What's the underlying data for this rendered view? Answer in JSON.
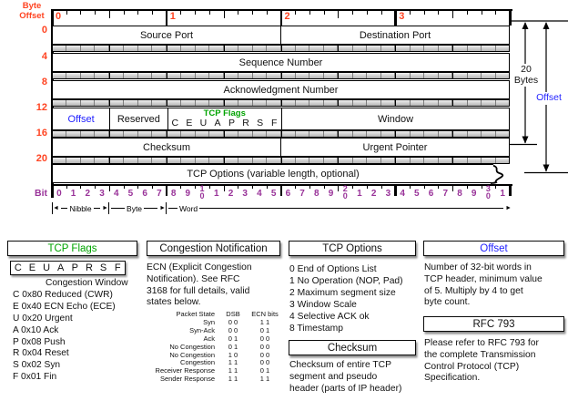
{
  "colors": {
    "red": "#ff4422",
    "purple": "#993399",
    "green": "#00a300",
    "blue": "#1f1fff"
  },
  "labels": {
    "byte_offset": "Byte\nOffset",
    "bit": "Bit",
    "nibble": "Nibble",
    "byte": "Byte",
    "word": "Word",
    "twenty_bytes": "20\nBytes",
    "offset_arrow": "Offset"
  },
  "top_ruler_numbers": [
    "0",
    "1",
    "2",
    "3"
  ],
  "row_offsets": [
    "0",
    "4",
    "8",
    "12",
    "16",
    "20"
  ],
  "bit_numbers": [
    "0",
    "1",
    "2",
    "3",
    "4",
    "5",
    "6",
    "7",
    "8",
    "9",
    "1\n0",
    "1",
    "2",
    "3",
    "4",
    "5",
    "6",
    "7",
    "8",
    "9",
    "2\n0",
    "1",
    "2",
    "3",
    "4",
    "5",
    "6",
    "7",
    "8",
    "9",
    "3\n0",
    "1"
  ],
  "rows": [
    {
      "fields": [
        {
          "label": "Source Port",
          "bits": 16
        },
        {
          "label": "Destination Port",
          "bits": 16
        }
      ]
    },
    {
      "fields": [
        {
          "label": "Sequence Number",
          "bits": 32
        }
      ]
    },
    {
      "fields": [
        {
          "label": "Acknowledgment Number",
          "bits": 32
        }
      ]
    },
    {
      "fields": [
        {
          "label": "Offset",
          "bits": 4,
          "color": "blue"
        },
        {
          "label": "Reserved",
          "bits": 4
        },
        {
          "label": "TCP Flags",
          "sub": "C E U A P R S F",
          "bits": 8
        },
        {
          "label": "Window",
          "bits": 16
        }
      ]
    },
    {
      "fields": [
        {
          "label": "Checksum",
          "bits": 16
        },
        {
          "label": "Urgent Pointer",
          "bits": 16
        }
      ]
    },
    {
      "fields": [
        {
          "label": "TCP Options (variable length, optional)",
          "bits": 32
        }
      ],
      "wavy": true
    }
  ],
  "legend": {
    "tcp_flags": {
      "title": "TCP Flags",
      "flag_box": [
        "C",
        "E",
        "U",
        "A",
        "P",
        "R",
        "S",
        "F"
      ],
      "lines": [
        "Congestion Window",
        "C 0x80 Reduced (CWR)",
        "E 0x40 ECN Echo (ECE)",
        "U 0x20 Urgent",
        "A 0x10 Ack",
        "P 0x08 Push",
        "R 0x04 Reset",
        "S 0x02 Syn",
        "F 0x01 Fin"
      ]
    },
    "congestion": {
      "title": "Congestion Notification",
      "text": "ECN (Explicit Congestion\nNotification).  See RFC\n3168 for full details, valid\nstates below.",
      "table": {
        "headers": [
          "Packet State",
          "DSB",
          "ECN bits"
        ],
        "rows": [
          [
            "Syn",
            "0 0",
            "1 1"
          ],
          [
            "Syn-Ack",
            "0 0",
            "0 1"
          ],
          [
            "Ack",
            "0 1",
            "0 0"
          ],
          [
            "",
            "",
            ""
          ],
          [
            "No Congestion",
            "0 1",
            "0 0"
          ],
          [
            "No Congestion",
            "1 0",
            "0 0"
          ],
          [
            "",
            "",
            ""
          ],
          [
            "Congestion",
            "1 1",
            "0 0"
          ],
          [
            "Receiver Response",
            "1 1",
            "0 1"
          ],
          [
            "Sender Response",
            "1 1",
            "1 1"
          ]
        ]
      }
    },
    "tcp_options": {
      "title": "TCP Options",
      "lines": [
        "0 End of Options List",
        "1 No Operation (NOP, Pad)",
        "2 Maximum segment size",
        "3 Window Scale",
        "4 Selective ACK ok",
        "8 Timestamp"
      ]
    },
    "checksum": {
      "title": "Checksum",
      "text": "Checksum of entire TCP\nsegment and pseudo\nheader (parts of IP header)"
    },
    "offset": {
      "title": "Offset",
      "text": "Number of 32-bit words in\nTCP header, minimum value\nof 5.  Multiply by 4 to get\nbyte count."
    },
    "rfc": {
      "title": "RFC 793",
      "text": "Please refer to RFC 793 for\nthe complete Transmission\nControl Protocol (TCP)\nSpecification."
    }
  }
}
